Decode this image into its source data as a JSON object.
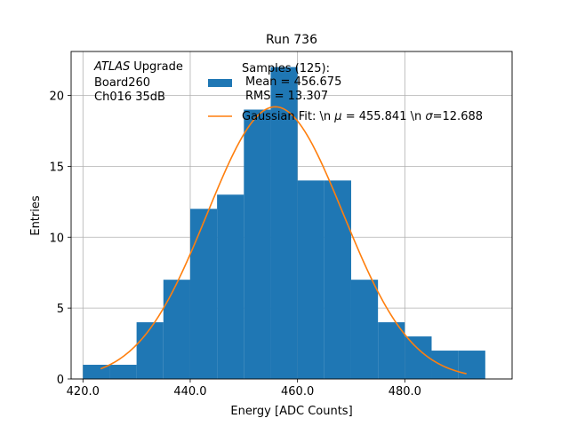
{
  "chart_data": {
    "type": "bar",
    "title": "Run 736",
    "xlabel": "Energy [ADC Counts]",
    "ylabel": "Entries",
    "xlim": [
      417.8,
      500.0
    ],
    "ylim": [
      0,
      23.1
    ],
    "x_ticks": [
      420.0,
      440.0,
      460.0,
      480.0
    ],
    "x_tick_labels": [
      "420.0",
      "440.0",
      "460.0",
      "480.0"
    ],
    "y_ticks": [
      0,
      5,
      10,
      15,
      20
    ],
    "y_tick_labels": [
      "0",
      "5",
      "10",
      "15",
      "20"
    ],
    "grid": true,
    "legend_position": "top-center",
    "annotation": {
      "atlas": "ATLAS",
      "upgrade": "Upgrade",
      "line2": "Board260",
      "line3": "Ch016 35dB"
    },
    "histogram": {
      "name_lines": [
        "Samples (125):",
        "Mean = 456.675",
        "RMS = 13.307"
      ],
      "color": "#1f77b4",
      "bin_edges": [
        420,
        425,
        430,
        435,
        440,
        445,
        450,
        455,
        460,
        465,
        470,
        475,
        480,
        485,
        490,
        495
      ],
      "counts": [
        1,
        1,
        4,
        7,
        12,
        13,
        19,
        22,
        14,
        14,
        7,
        4,
        3,
        2,
        2
      ]
    },
    "fit": {
      "name_prefix": "Gaussian Fit: \\n ",
      "mu_symbol": "μ",
      "mu_text": " = 455.841 \\n ",
      "sigma_symbol": "σ",
      "sigma_text": "=12.688",
      "color": "#ff7f0e",
      "mu": 455.841,
      "sigma": 12.688,
      "amplitude": 19.2,
      "x_range": [
        423.3,
        491.5
      ]
    }
  }
}
